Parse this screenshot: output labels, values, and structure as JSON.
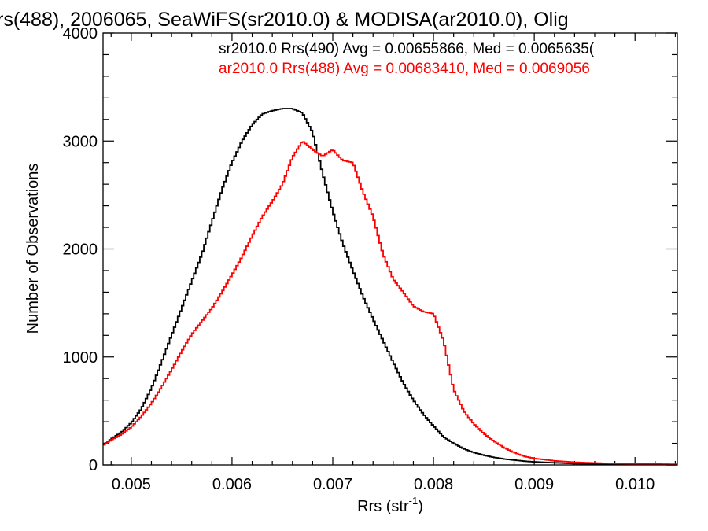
{
  "chart_data": {
    "type": "line",
    "title": "rs(488), 2006065, SeaWiFS(sr2010.0) & MODISA(ar2010.0), Olig",
    "xlabel": "Rrs (str",
    "xlabel_sup": "-1",
    "xlabel_close": ")",
    "ylabel": "Number of Observations",
    "xlim": [
      0.00472,
      0.01042
    ],
    "ylim": [
      0,
      4000
    ],
    "x_ticks": [
      0.005,
      0.006,
      0.007,
      0.008,
      0.009,
      0.01
    ],
    "x_tick_labels": [
      "0.005",
      "0.006",
      "0.007",
      "0.008",
      "0.009",
      "0.010"
    ],
    "y_ticks": [
      0,
      1000,
      2000,
      3000,
      4000
    ],
    "y_tick_labels": [
      "0",
      "1000",
      "2000",
      "3000",
      "4000"
    ],
    "grid": false,
    "legend_position": "top-right",
    "bin_width": 2e-05,
    "series": [
      {
        "name": "sr2010.0 Rrs(490) Avg = 0.00655866, Med = 0.0065635(",
        "color": "#000000",
        "points": [
          [
            0.00472,
            180
          ],
          [
            0.0048,
            240
          ],
          [
            0.0049,
            300
          ],
          [
            0.005,
            390
          ],
          [
            0.0051,
            520
          ],
          [
            0.0052,
            710
          ],
          [
            0.0053,
            950
          ],
          [
            0.0054,
            1200
          ],
          [
            0.0055,
            1450
          ],
          [
            0.0056,
            1700
          ],
          [
            0.0057,
            1950
          ],
          [
            0.0058,
            2250
          ],
          [
            0.0059,
            2550
          ],
          [
            0.006,
            2800
          ],
          [
            0.0061,
            3000
          ],
          [
            0.0062,
            3150
          ],
          [
            0.0063,
            3250
          ],
          [
            0.0064,
            3280
          ],
          [
            0.0065,
            3300
          ],
          [
            0.0066,
            3300
          ],
          [
            0.0067,
            3260
          ],
          [
            0.0068,
            3080
          ],
          [
            0.0069,
            2700
          ],
          [
            0.007,
            2350
          ],
          [
            0.0071,
            2050
          ],
          [
            0.0072,
            1800
          ],
          [
            0.0073,
            1560
          ],
          [
            0.0074,
            1350
          ],
          [
            0.0075,
            1150
          ],
          [
            0.0076,
            950
          ],
          [
            0.0077,
            760
          ],
          [
            0.0078,
            600
          ],
          [
            0.0079,
            470
          ],
          [
            0.008,
            360
          ],
          [
            0.0081,
            260
          ],
          [
            0.0082,
            200
          ],
          [
            0.0083,
            150
          ],
          [
            0.0084,
            115
          ],
          [
            0.0085,
            90
          ],
          [
            0.0086,
            70
          ],
          [
            0.0087,
            55
          ],
          [
            0.0088,
            45
          ],
          [
            0.0089,
            35
          ],
          [
            0.009,
            28
          ],
          [
            0.0092,
            20
          ],
          [
            0.0094,
            12
          ],
          [
            0.0096,
            8
          ],
          [
            0.0098,
            5
          ],
          [
            0.01,
            4
          ],
          [
            0.0102,
            3
          ],
          [
            0.01042,
            2
          ]
        ]
      },
      {
        "name": "ar2010.0 Rrs(488) Avg = 0.00683410, Med = 0.0069056",
        "color": "#ff0000",
        "points": [
          [
            0.00472,
            180
          ],
          [
            0.0048,
            230
          ],
          [
            0.0049,
            280
          ],
          [
            0.005,
            350
          ],
          [
            0.0051,
            450
          ],
          [
            0.0052,
            570
          ],
          [
            0.0053,
            720
          ],
          [
            0.0054,
            880
          ],
          [
            0.0055,
            1050
          ],
          [
            0.0056,
            1210
          ],
          [
            0.0057,
            1330
          ],
          [
            0.0058,
            1450
          ],
          [
            0.0059,
            1600
          ],
          [
            0.006,
            1760
          ],
          [
            0.0061,
            1930
          ],
          [
            0.0062,
            2120
          ],
          [
            0.0063,
            2300
          ],
          [
            0.0064,
            2440
          ],
          [
            0.0065,
            2600
          ],
          [
            0.0066,
            2850
          ],
          [
            0.0067,
            3000
          ],
          [
            0.0068,
            2920
          ],
          [
            0.0069,
            2860
          ],
          [
            0.007,
            2920
          ],
          [
            0.0071,
            2820
          ],
          [
            0.0072,
            2800
          ],
          [
            0.0073,
            2530
          ],
          [
            0.0074,
            2300
          ],
          [
            0.0075,
            1950
          ],
          [
            0.0076,
            1720
          ],
          [
            0.0077,
            1600
          ],
          [
            0.0078,
            1470
          ],
          [
            0.0079,
            1420
          ],
          [
            0.008,
            1400
          ],
          [
            0.0081,
            1150
          ],
          [
            0.0082,
            700
          ],
          [
            0.0083,
            500
          ],
          [
            0.0084,
            380
          ],
          [
            0.0085,
            290
          ],
          [
            0.0086,
            220
          ],
          [
            0.0087,
            160
          ],
          [
            0.0088,
            115
          ],
          [
            0.0089,
            80
          ],
          [
            0.009,
            60
          ],
          [
            0.0092,
            38
          ],
          [
            0.0094,
            25
          ],
          [
            0.0096,
            18
          ],
          [
            0.0098,
            13
          ],
          [
            0.01,
            10
          ],
          [
            0.0102,
            8
          ],
          [
            0.01042,
            6
          ]
        ]
      }
    ]
  }
}
